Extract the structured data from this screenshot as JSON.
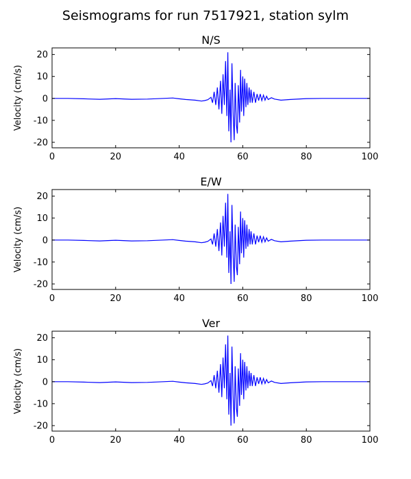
{
  "figure": {
    "title": "Seismograms for run 7517921, station sylm"
  },
  "chart_data": [
    {
      "type": "line",
      "title": "N/S",
      "xlabel": "",
      "ylabel": "Velocity (cm/s)",
      "xlim": [
        0,
        100
      ],
      "ylim": [
        -22.5,
        23
      ],
      "xticks": [
        "0",
        "20",
        "40",
        "60",
        "80",
        "100"
      ],
      "yticks": [
        "20",
        "10",
        "0",
        "-10",
        "-20"
      ],
      "line_color": "#0000ff",
      "grid": false,
      "series": [
        {
          "x": [
            0,
            5,
            10,
            15,
            20,
            25,
            30,
            35,
            38,
            40,
            42,
            45,
            47,
            48,
            49,
            50,
            50.5,
            51,
            51.5,
            52,
            52.5,
            53,
            53.4,
            53.8,
            54.2,
            54.6,
            55,
            55.3,
            55.6,
            56,
            56.3,
            56.6,
            57,
            57.3,
            57.6,
            58,
            58.3,
            58.6,
            59,
            59.3,
            59.6,
            60,
            60.3,
            60.6,
            61,
            61.3,
            61.6,
            62,
            62.3,
            62.6,
            63,
            63.5,
            64,
            64.5,
            65,
            65.5,
            66,
            66.5,
            67,
            67.5,
            68,
            69,
            70,
            72,
            75,
            80,
            85,
            90,
            95,
            100
          ],
          "y": [
            0,
            0,
            -0.2,
            -0.4,
            -0.1,
            -0.4,
            -0.3,
            0,
            0.2,
            -0.2,
            -0.5,
            -0.8,
            -1.2,
            -1.0,
            -0.6,
            0.5,
            -2,
            3,
            -3,
            5,
            -5,
            8,
            -7,
            11,
            -3,
            17,
            -8,
            21,
            -15,
            4,
            -20,
            16,
            -8,
            -19,
            7,
            -12,
            -16,
            6,
            -11,
            13,
            -6,
            10,
            -8,
            9,
            -4,
            7,
            -3,
            5,
            -2,
            4,
            -2,
            3,
            -2,
            2,
            -1,
            2,
            -1,
            1.5,
            -0.8,
            1,
            -0.5,
            0.3,
            -0.3,
            -0.8,
            -0.5,
            -0.1,
            0,
            0,
            0,
            0
          ]
        }
      ]
    },
    {
      "type": "line",
      "title": "E/W",
      "xlabel": "",
      "ylabel": "Velocity (cm/s)",
      "xlim": [
        0,
        100
      ],
      "ylim": [
        -22.5,
        23
      ],
      "xticks": [
        "0",
        "20",
        "40",
        "60",
        "80",
        "100"
      ],
      "yticks": [
        "20",
        "10",
        "0",
        "-10",
        "-20"
      ],
      "line_color": "#0000ff",
      "grid": false,
      "series": [
        {
          "x": [
            0,
            5,
            10,
            15,
            20,
            25,
            30,
            35,
            38,
            40,
            42,
            45,
            47,
            48,
            49,
            50,
            50.5,
            51,
            51.5,
            52,
            52.5,
            53,
            53.4,
            53.8,
            54.2,
            54.6,
            55,
            55.3,
            55.6,
            56,
            56.3,
            56.6,
            57,
            57.3,
            57.6,
            58,
            58.3,
            58.6,
            59,
            59.3,
            59.6,
            60,
            60.3,
            60.6,
            61,
            61.3,
            61.6,
            62,
            62.3,
            62.6,
            63,
            63.5,
            64,
            64.5,
            65,
            65.5,
            66,
            66.5,
            67,
            67.5,
            68,
            69,
            70,
            72,
            75,
            80,
            85,
            90,
            95,
            100
          ],
          "y": [
            0,
            0,
            -0.2,
            -0.4,
            -0.1,
            -0.4,
            -0.3,
            0,
            0.2,
            -0.2,
            -0.5,
            -0.8,
            -1.2,
            -1.0,
            -0.6,
            0.5,
            -2,
            3,
            -3,
            5,
            -5,
            8,
            -7,
            11,
            -3,
            17,
            -8,
            21,
            -15,
            4,
            -20,
            16,
            -8,
            -19,
            7,
            -12,
            -16,
            6,
            -11,
            13,
            -6,
            10,
            -8,
            9,
            -4,
            7,
            -3,
            5,
            -2,
            4,
            -2,
            3,
            -2,
            2,
            -1,
            2,
            -1,
            1.5,
            -0.8,
            1,
            -0.5,
            0.3,
            -0.3,
            -0.8,
            -0.5,
            -0.1,
            0,
            0,
            0,
            0
          ]
        }
      ]
    },
    {
      "type": "line",
      "title": "Ver",
      "xlabel": "",
      "ylabel": "Velocity (cm/s)",
      "xlim": [
        0,
        100
      ],
      "ylim": [
        -22.5,
        23
      ],
      "xticks": [
        "0",
        "20",
        "40",
        "60",
        "80",
        "100"
      ],
      "yticks": [
        "20",
        "10",
        "0",
        "-10",
        "-20"
      ],
      "line_color": "#0000ff",
      "grid": false,
      "series": [
        {
          "x": [
            0,
            5,
            10,
            15,
            20,
            25,
            30,
            35,
            38,
            40,
            42,
            45,
            47,
            48,
            49,
            50,
            50.5,
            51,
            51.5,
            52,
            52.5,
            53,
            53.4,
            53.8,
            54.2,
            54.6,
            55,
            55.3,
            55.6,
            56,
            56.3,
            56.6,
            57,
            57.3,
            57.6,
            58,
            58.3,
            58.6,
            59,
            59.3,
            59.6,
            60,
            60.3,
            60.6,
            61,
            61.3,
            61.6,
            62,
            62.3,
            62.6,
            63,
            63.5,
            64,
            64.5,
            65,
            65.5,
            66,
            66.5,
            67,
            67.5,
            68,
            69,
            70,
            72,
            75,
            80,
            85,
            90,
            95,
            100
          ],
          "y": [
            0,
            0,
            -0.2,
            -0.4,
            -0.1,
            -0.4,
            -0.3,
            0,
            0.2,
            -0.2,
            -0.5,
            -0.8,
            -1.2,
            -1.0,
            -0.6,
            0.5,
            -2,
            3,
            -3,
            5,
            -5,
            8,
            -7,
            11,
            -3,
            17,
            -8,
            21,
            -15,
            4,
            -20,
            16,
            -8,
            -19,
            7,
            -12,
            -16,
            6,
            -11,
            13,
            -6,
            10,
            -8,
            9,
            -4,
            7,
            -3,
            5,
            -2,
            4,
            -2,
            3,
            -2,
            2,
            -1,
            2,
            -1,
            1.5,
            -0.8,
            1,
            -0.5,
            0.3,
            -0.3,
            -0.8,
            -0.5,
            -0.1,
            0,
            0,
            0,
            0
          ]
        }
      ]
    }
  ]
}
